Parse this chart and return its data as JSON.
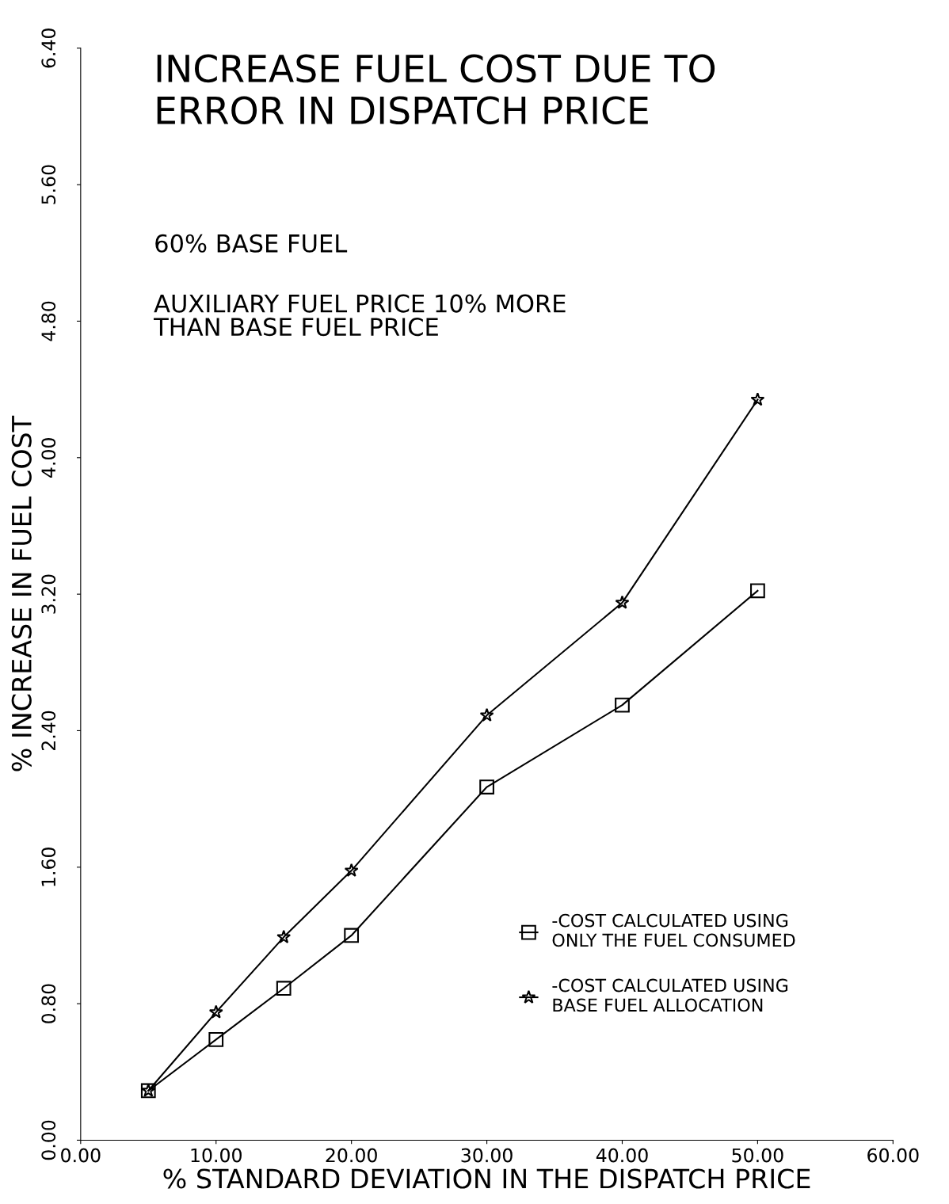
{
  "chart_data": {
    "type": "line",
    "title": "INCREASE FUEL COST DUE TO\nERROR IN DISPATCH PRICE",
    "annotations": [
      "60% BASE FUEL",
      "AUXILIARY FUEL PRICE 10% MORE\nTHAN BASE FUEL PRICE"
    ],
    "xlabel": "% STANDARD DEVIATION IN THE DISPATCH PRICE",
    "ylabel": "% INCREASE IN FUEL COST",
    "x": [
      5,
      10,
      15,
      20,
      30,
      40,
      50
    ],
    "series": [
      {
        "name": "-COST CALCULATED USING\nONLY THE FUEL CONSUMED",
        "color": "#000000",
        "marker": "square",
        "values": [
          0.29,
          0.59,
          0.89,
          1.2,
          2.07,
          2.55,
          3.22
        ]
      },
      {
        "name": "-COST CALCULATED USING\nBASE FUEL ALLOCATION",
        "color": "#000000",
        "marker": "star",
        "values": [
          0.29,
          0.75,
          1.19,
          1.58,
          2.49,
          3.15,
          4.34
        ]
      }
    ],
    "xlim": [
      0,
      60
    ],
    "ylim": [
      0,
      6.4
    ],
    "xticks": [
      {
        "value": 0,
        "label": "0.00"
      },
      {
        "value": 10,
        "label": "10.00"
      },
      {
        "value": 20,
        "label": "20.00"
      },
      {
        "value": 30,
        "label": "30.00"
      },
      {
        "value": 40,
        "label": "40.00"
      },
      {
        "value": 50,
        "label": "50.00"
      },
      {
        "value": 60,
        "label": "60.00"
      }
    ],
    "yticks": [
      {
        "value": 0,
        "label": "0.00"
      },
      {
        "value": 0.8,
        "label": "0.80"
      },
      {
        "value": 1.6,
        "label": "1.60"
      },
      {
        "value": 2.4,
        "label": "2.40"
      },
      {
        "value": 3.2,
        "label": "3.20"
      },
      {
        "value": 4.0,
        "label": "4.00"
      },
      {
        "value": 4.8,
        "label": "4.80"
      },
      {
        "value": 5.6,
        "label": "5.60"
      },
      {
        "value": 6.4,
        "label": "6.40"
      }
    ],
    "grid": false,
    "legend": "lower right",
    "line_style": "solid"
  }
}
